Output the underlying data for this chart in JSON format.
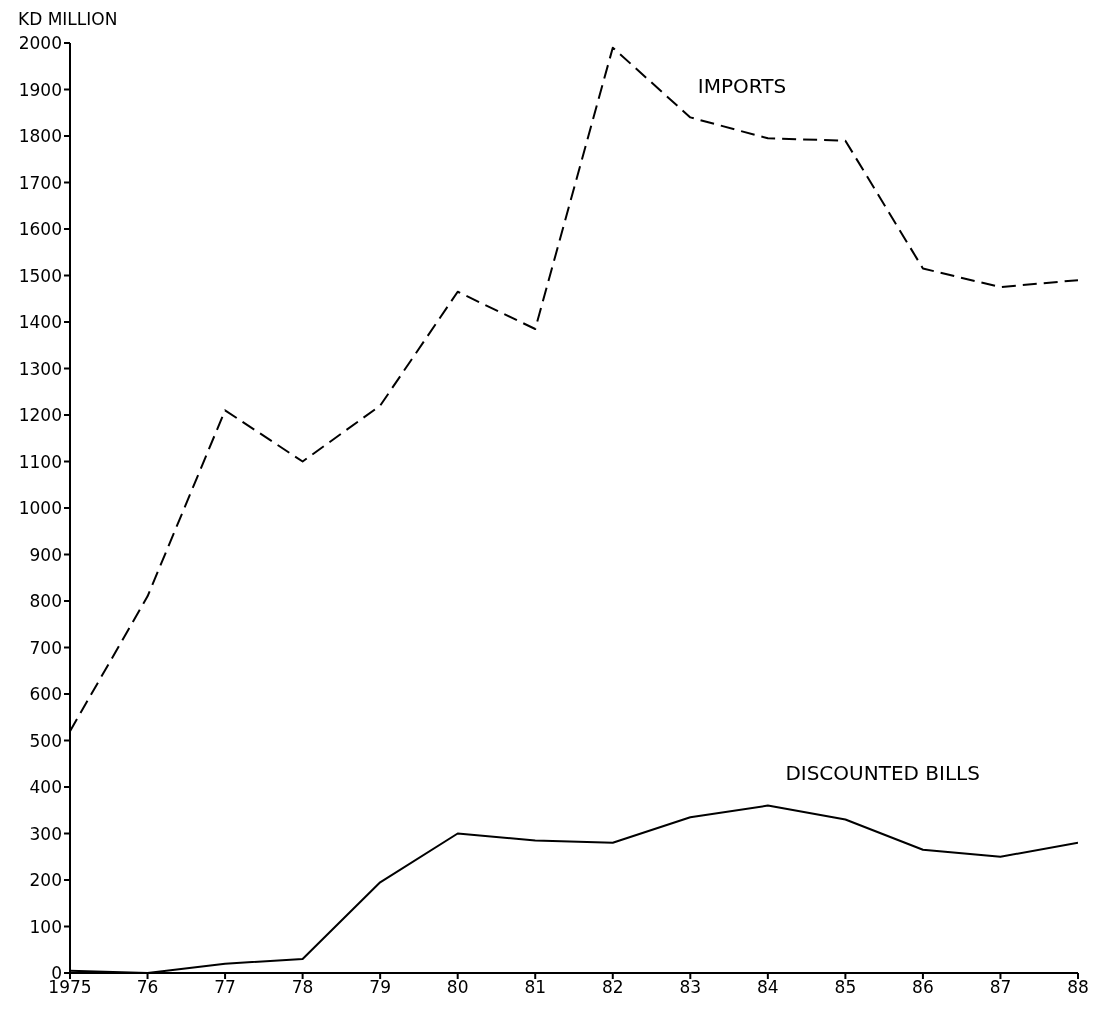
{
  "chart_data": {
    "type": "line",
    "ylabel": "KD MILLION",
    "x": [
      1975,
      1976,
      1977,
      1978,
      1979,
      1980,
      1981,
      1982,
      1983,
      1984,
      1985,
      1986,
      1987,
      1988
    ],
    "series": [
      {
        "name": "IMPORTS",
        "color": "#000000",
        "line_style": "dashed",
        "values": [
          520,
          810,
          1210,
          1100,
          1220,
          1465,
          1385,
          1990,
          1840,
          1795,
          1790,
          1515,
          1475,
          1490
        ]
      },
      {
        "name": "DISCOUNTED BILLS",
        "color": "#000000",
        "line_style": "solid",
        "values": [
          5,
          0,
          20,
          30,
          195,
          300,
          285,
          280,
          335,
          360,
          330,
          265,
          250,
          280
        ]
      }
    ],
    "xlim": [
      1975,
      1988
    ],
    "xticks": [
      {
        "value": 1975,
        "label": "1975"
      },
      {
        "value": 1976,
        "label": "76"
      },
      {
        "value": 1977,
        "label": "77"
      },
      {
        "value": 1978,
        "label": "78"
      },
      {
        "value": 1979,
        "label": "79"
      },
      {
        "value": 1980,
        "label": "80"
      },
      {
        "value": 1981,
        "label": "81"
      },
      {
        "value": 1982,
        "label": "82"
      },
      {
        "value": 1983,
        "label": "83"
      },
      {
        "value": 1984,
        "label": "84"
      },
      {
        "value": 1985,
        "label": "85"
      },
      {
        "value": 1986,
        "label": "86"
      },
      {
        "value": 1987,
        "label": "87"
      },
      {
        "value": 1988,
        "label": "88"
      }
    ],
    "ylim": [
      0,
      2000
    ],
    "yticks": [
      0,
      100,
      200,
      300,
      400,
      500,
      600,
      700,
      800,
      900,
      1000,
      1100,
      1200,
      1300,
      1400,
      1500,
      1600,
      1700,
      1800,
      1900,
      2000
    ],
    "grid": false,
    "legend": false,
    "marker": "none"
  }
}
